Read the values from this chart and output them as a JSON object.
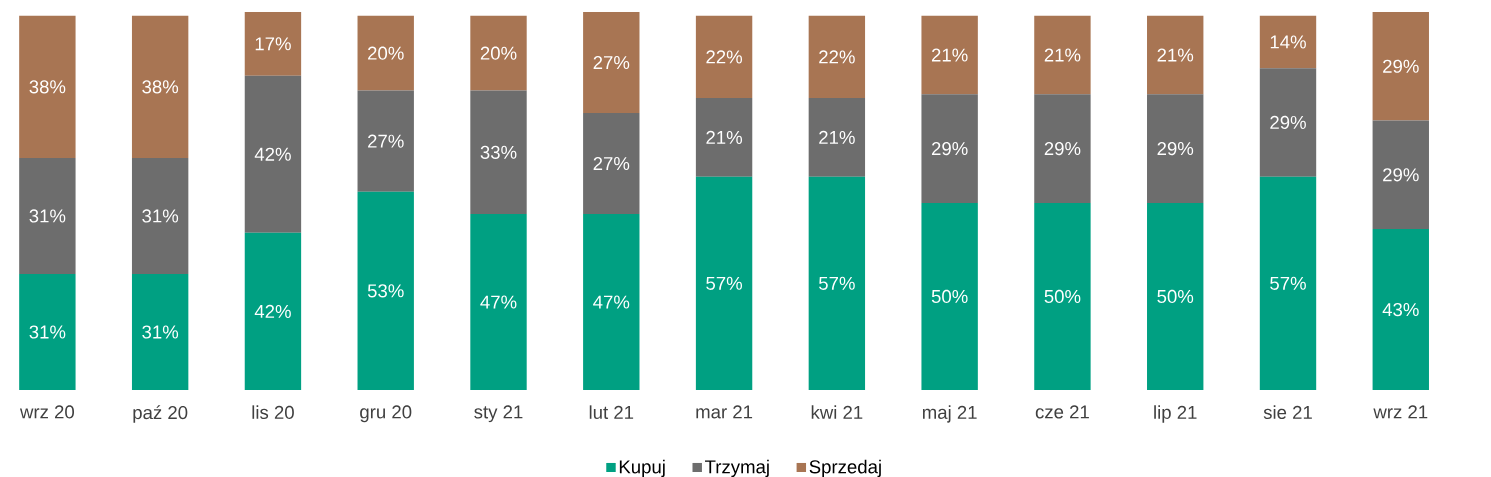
{
  "chart_data": {
    "type": "bar",
    "stacked": true,
    "legend": "bottom",
    "tick_labels": "x",
    "categories": [
      "wrz 20",
      "paź 20",
      "lis 20",
      "gru 20",
      "sty 21",
      "lut 21",
      "mar 21",
      "kwi 21",
      "maj 21",
      "cze 21",
      "lip 21",
      "sie 21",
      "wrz 21"
    ],
    "series": [
      {
        "name": "Kupuj",
        "color": "#00a082",
        "values": [
          31,
          31,
          42,
          53,
          47,
          47,
          57,
          57,
          50,
          50,
          50,
          57,
          43
        ],
        "value_labels": [
          "31%",
          "31%",
          "42%",
          "53%",
          "47%",
          "47%",
          "57%",
          "57%",
          "50%",
          "50%",
          "50%",
          "57%",
          "43%"
        ]
      },
      {
        "name": "Trzymaj",
        "color": "#6d6d6d",
        "values": [
          31,
          31,
          42,
          27,
          33,
          27,
          21,
          21,
          29,
          29,
          29,
          29,
          29
        ],
        "value_labels": [
          "31%",
          "31%",
          "42%",
          "27%",
          "33%",
          "27%",
          "21%",
          "21%",
          "29%",
          "29%",
          "29%",
          "29%",
          "29%"
        ]
      },
      {
        "name": "Sprzedaj",
        "color": "#a87553",
        "values": [
          38,
          38,
          17,
          20,
          20,
          27,
          22,
          22,
          21,
          21,
          21,
          14,
          29
        ],
        "value_labels": [
          "38%",
          "38%",
          "17%",
          "20%",
          "20%",
          "27%",
          "22%",
          "22%",
          "21%",
          "21%",
          "21%",
          "14%",
          "29%"
        ]
      }
    ]
  }
}
